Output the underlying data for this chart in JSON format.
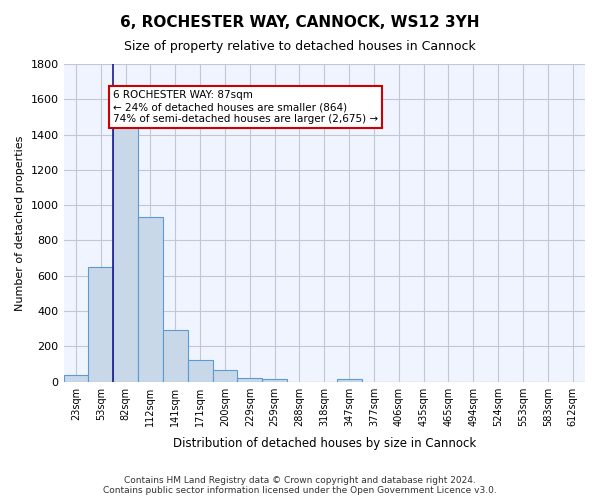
{
  "title": "6, ROCHESTER WAY, CANNOCK, WS12 3YH",
  "subtitle": "Size of property relative to detached houses in Cannock",
  "xlabel": "Distribution of detached houses by size in Cannock",
  "ylabel": "Number of detached properties",
  "categories": [
    "23sqm",
    "53sqm",
    "82sqm",
    "112sqm",
    "141sqm",
    "171sqm",
    "200sqm",
    "229sqm",
    "259sqm",
    "288sqm",
    "318sqm",
    "347sqm",
    "377sqm",
    "406sqm",
    "435sqm",
    "465sqm",
    "494sqm",
    "524sqm",
    "553sqm",
    "583sqm",
    "612sqm"
  ],
  "values": [
    35,
    650,
    1475,
    935,
    290,
    125,
    65,
    22,
    15,
    0,
    0,
    15,
    0,
    0,
    0,
    0,
    0,
    0,
    0,
    0,
    0
  ],
  "bar_color": "#c8d8e8",
  "bar_edge_color": "#5b9bd5",
  "vline_x": 1,
  "vline_color": "#1a1a8c",
  "annotation_text": "6 ROCHESTER WAY: 87sqm\n← 24% of detached houses are smaller (864)\n74% of semi-detached houses are larger (2,675) →",
  "annotation_box_color": "#cc0000",
  "ylim": [
    0,
    1800
  ],
  "yticks": [
    0,
    200,
    400,
    600,
    800,
    1000,
    1200,
    1400,
    1600,
    1800
  ],
  "footer": "Contains HM Land Registry data © Crown copyright and database right 2024.\nContains public sector information licensed under the Open Government Licence v3.0.",
  "bg_color": "#f0f4ff",
  "grid_color": "#c0c8d8"
}
